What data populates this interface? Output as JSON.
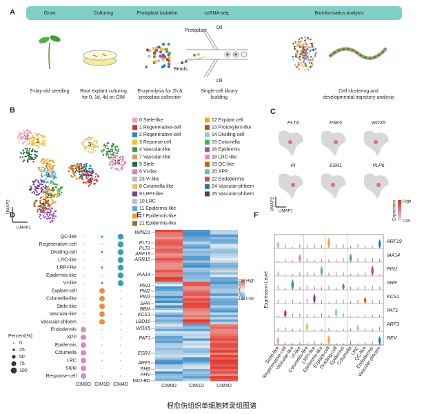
{
  "panel_labels": [
    "A",
    "B",
    "C",
    "D",
    "E",
    "F"
  ],
  "panel_a": {
    "steps": [
      "Grow",
      "Culturing",
      "Protoplast isolation",
      "scRNA-seq",
      "Bioinformatics analysis"
    ],
    "captions": [
      [
        "5-day-old seedling"
      ],
      [
        "Root explant culturing",
        "for 0, 1d, 4d on CIM"
      ],
      [
        "Enzymolysis for 2h &",
        "protoplast collection"
      ],
      [
        "Single-cell library",
        "building"
      ],
      [
        "Cell clustering and",
        "developmental trajectory analysis"
      ]
    ],
    "device_labels": [
      "Protoplast",
      "Oil",
      "Beads",
      "Oil"
    ]
  },
  "panel_b": {
    "axis_labels": [
      "UMAP1",
      "UMAP2"
    ],
    "clusters": [
      {
        "label": "0 Stele-like",
        "color": "#f2a7b8"
      },
      {
        "label": "1 Regenerative-cell",
        "color": "#d7312a"
      },
      {
        "label": "2 Regenerative-cell",
        "color": "#2f7fc0"
      },
      {
        "label": "3 Reponse cell",
        "color": "#f2c230"
      },
      {
        "label": "4 Vascular-like",
        "color": "#3b9b49"
      },
      {
        "label": "7 Vascular-like",
        "color": "#c8a46c"
      },
      {
        "label": "5 Stele",
        "color": "#2a6a3a"
      },
      {
        "label": "6 VI-like",
        "color": "#e47db1"
      },
      {
        "label": "23 VI-like",
        "color": "#b8b8b8"
      },
      {
        "label": "8 Columella-like",
        "color": "#e8c46e"
      },
      {
        "label": "9 LRPI-like",
        "color": "#7d3c98"
      },
      {
        "label": "10 LRC",
        "color": "#c7b3d9"
      },
      {
        "label": "11 Epidermis-like",
        "color": "#5aa7d6"
      },
      {
        "label": "17 Epidermis-like",
        "color": "#f39a2b"
      },
      {
        "label": "21 Epidermis-like",
        "color": "#9e6c3b"
      },
      {
        "label": "12 Explant cell",
        "color": "#f5a623"
      },
      {
        "label": "13 Protoxylem-like",
        "color": "#a65628"
      },
      {
        "label": "14 Dividing cell",
        "color": "#8dd3c7"
      },
      {
        "label": "15 Columella",
        "color": "#4daf4a"
      },
      {
        "label": "16 Epidermis",
        "color": "#9b59b6"
      },
      {
        "label": "18 LRC-like",
        "color": "#e78ac3"
      },
      {
        "label": "19 QC-like",
        "color": "#d95f02"
      },
      {
        "label": "20 XPP",
        "color": "#66c2a5"
      },
      {
        "label": "22 Endodermis",
        "color": "#c44e52"
      },
      {
        "label": "24 Vascular-phloem",
        "color": "#1f78b4"
      },
      {
        "label": "25 Vascular-phloem",
        "color": "#6b3a2a"
      }
    ],
    "map_labels": [
      "11",
      "1",
      "2",
      "3",
      "4",
      "7",
      "5",
      "24",
      "20",
      "22",
      "16",
      "15",
      "6",
      "23",
      "8",
      "0"
    ]
  },
  "panel_c": {
    "genes": [
      "PLT4",
      "PSK5",
      "WOX5",
      "PI",
      "ESR1",
      "PLP6"
    ],
    "axis_labels": [
      "UMAP1",
      "UMAP2"
    ],
    "legend": {
      "title": "Expression",
      "high": "High",
      "low": "Low"
    }
  },
  "panel_d": {
    "rows": [
      "QC-like",
      "Regenerative-cell",
      "Dividing-cell",
      "LRC-like",
      "LRPI-like",
      "Epidermis-like",
      "VI-like",
      "Explant-cell",
      "Columella-like",
      "Stele-like",
      "Vascular-like",
      "Vascular-phloem",
      "Endodermis",
      "XPP",
      "Epidermis",
      "Columella",
      "LRC",
      "Stele",
      "Response-cell"
    ],
    "columns": [
      "CIM0D",
      "CIM1D",
      "CIM4D"
    ],
    "legend_title": "Percent(%)",
    "legend_sizes": [
      0,
      25,
      50,
      75,
      100
    ]
  },
  "panel_e": {
    "genes": [
      "WIND1",
      "PLT1",
      "PLT2",
      "ARF19",
      "ARR10",
      "IAA14",
      "PIN1",
      "PIN2",
      "PIN3",
      "SHR",
      "BBM",
      "KCS1",
      "LBD16",
      "WOX5",
      "PAT1",
      "ESR1",
      "ARF3",
      "PHB",
      "PHV",
      "FAD-BD"
    ],
    "columns": [
      "CIM0D",
      "CIM1D",
      "CIM4D"
    ],
    "legend": {
      "title": "Expression",
      "high": "High",
      "low": "Low"
    }
  },
  "panel_f": {
    "genes": [
      "ARF19",
      "IAA14",
      "PIN1",
      "SHR",
      "KCS1",
      "PAT1",
      "ARF3",
      "REV"
    ],
    "cell_types": [
      "Stele-like",
      "Regenerative-cell",
      "Vascular-like",
      "VI-like",
      "Columella-like",
      "LRPI-like",
      "Epidermis-like",
      "Explant-cell",
      "Dividing-cell",
      "Epidermis",
      "Columella",
      "LRC",
      "QC-like",
      "Endodermis",
      "Vascular-phloem"
    ],
    "y_label": "Expression Level"
  },
  "caption": "根愈伤组织单细胞转录组图谱"
}
